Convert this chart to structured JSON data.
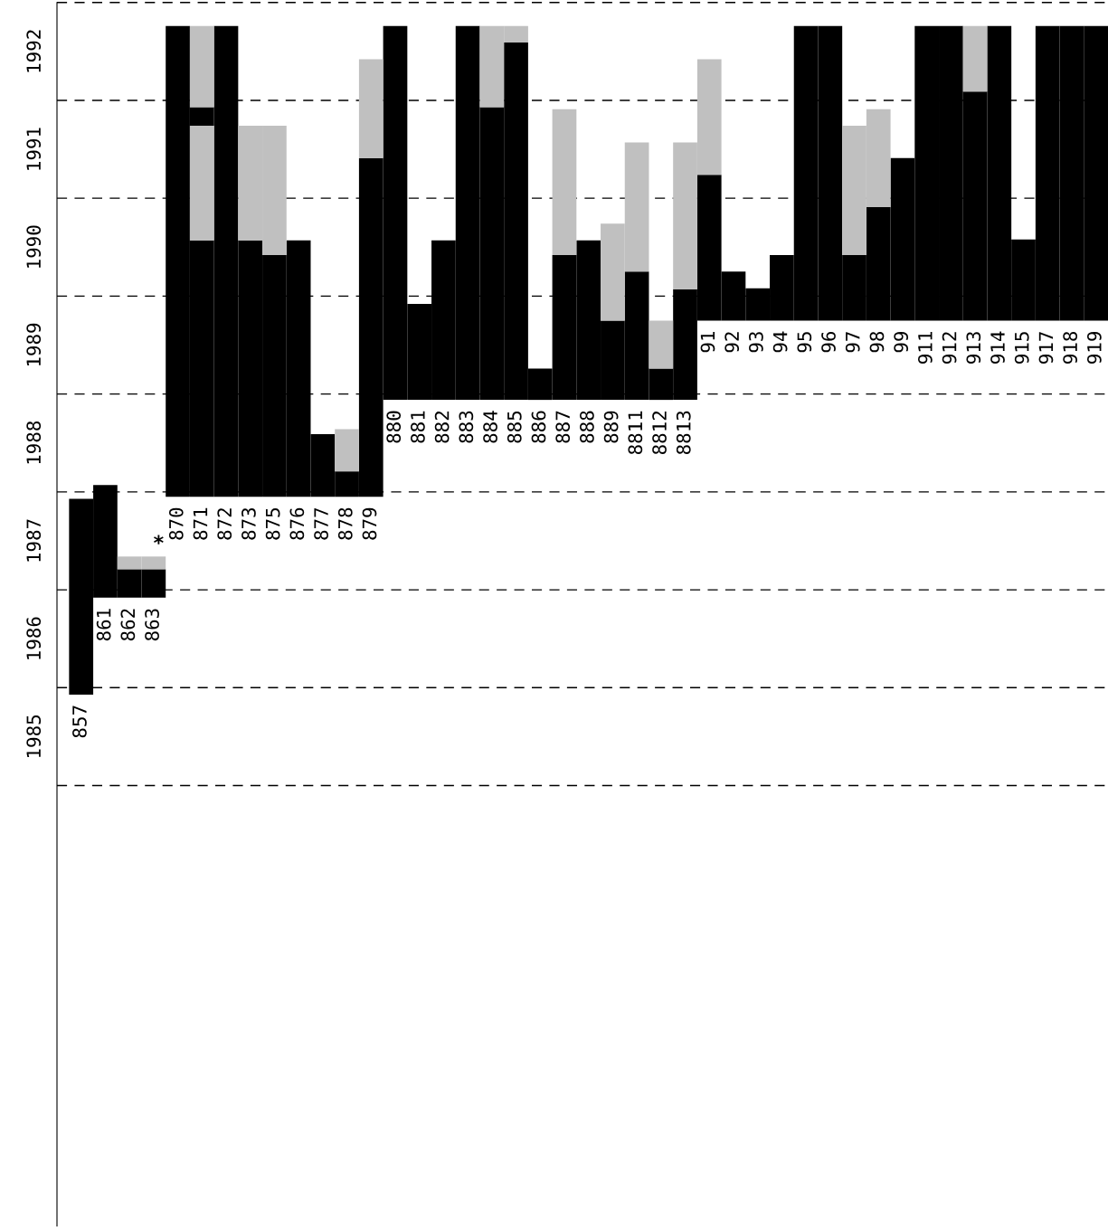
{
  "chart_data": {
    "type": "bar",
    "categories": [
      "857",
      "861",
      "862",
      "863",
      "870",
      "871",
      "872",
      "873",
      "875",
      "876",
      "877",
      "878",
      "879",
      "880",
      "881",
      "882",
      "883",
      "884",
      "885",
      "886",
      "887",
      "888",
      "889",
      "8811",
      "8812",
      "8813",
      "91",
      "92",
      "93",
      "94",
      "95",
      "96",
      "97",
      "98",
      "99",
      "911",
      "912",
      "913",
      "914",
      "915",
      "917",
      "918",
      "919"
    ],
    "series": [
      {
        "color": "#000000",
        "base": [
          1985.93,
          1986.92,
          1986.92,
          1986.92,
          1987.95,
          1987.95,
          1987.95,
          1987.95,
          1987.95,
          1987.95,
          1987.95,
          1987.95,
          1987.95,
          1988.94,
          1988.94,
          1988.94,
          1988.94,
          1988.94,
          1988.94,
          1988.94,
          1988.94,
          1988.94,
          1988.94,
          1988.94,
          1988.94,
          1988.94,
          1989.75,
          1989.75,
          1989.75,
          1989.75,
          1989.75,
          1989.75,
          1989.75,
          1989.75,
          1989.75,
          1989.75,
          1989.75,
          1989.75,
          1989.75,
          1989.75,
          1989.75,
          1989.75,
          1989.75
        ],
        "values": [
          2.0,
          1.15,
          0.29,
          0.29,
          4.81,
          2.62,
          4.81,
          2.62,
          2.47,
          2.62,
          0.64,
          0.26,
          3.46,
          3.82,
          0.98,
          1.63,
          3.82,
          2.99,
          3.65,
          0.32,
          1.48,
          1.63,
          0.81,
          1.31,
          0.32,
          1.13,
          1.49,
          0.5,
          0.33,
          0.67,
          3.01,
          3.01,
          0.67,
          1.16,
          1.66,
          3.01,
          3.01,
          2.34,
          3.01,
          0.83,
          3.01,
          3.01,
          3.01
        ]
      },
      {
        "color": "#c0c0c0",
        "base": [
          null,
          null,
          1987.21,
          1987.21,
          null,
          1990.57,
          null,
          1990.57,
          1990.42,
          null,
          null,
          1988.21,
          1991.41,
          null,
          null,
          null,
          null,
          1991.93,
          1992.59,
          null,
          1990.42,
          null,
          1989.75,
          1990.25,
          1989.26,
          1990.07,
          1991.24,
          null,
          null,
          null,
          null,
          null,
          1990.42,
          1990.91,
          null,
          null,
          null,
          1992.09,
          null,
          null,
          null,
          null,
          null
        ],
        "values": [
          null,
          null,
          0.13,
          0.13,
          null,
          1.17,
          null,
          1.17,
          1.32,
          null,
          null,
          0.43,
          1.01,
          null,
          null,
          null,
          null,
          0.83,
          0.17,
          null,
          1.49,
          null,
          0.99,
          1.32,
          0.49,
          1.5,
          1.18,
          null,
          null,
          null,
          null,
          null,
          1.32,
          1.0,
          null,
          null,
          null,
          0.67,
          null,
          null,
          null,
          null,
          null
        ]
      },
      {
        "color": "#000000",
        "base": [
          null,
          null,
          null,
          null,
          null,
          1991.74,
          null,
          null,
          null,
          null,
          null,
          null,
          null,
          null,
          null,
          null,
          null,
          null,
          null,
          null,
          null,
          null,
          null,
          null,
          null,
          null,
          null,
          null,
          null,
          null,
          null,
          null,
          null,
          null,
          null,
          null,
          null,
          null,
          null,
          null,
          null,
          null,
          null
        ],
        "values": [
          null,
          null,
          null,
          null,
          null,
          0.19,
          null,
          null,
          null,
          null,
          null,
          null,
          null,
          null,
          null,
          null,
          null,
          null,
          null,
          null,
          null,
          null,
          null,
          null,
          null,
          null,
          null,
          null,
          null,
          null,
          null,
          null,
          null,
          null,
          null,
          null,
          null,
          null,
          null,
          null,
          null,
          null,
          null
        ]
      },
      {
        "color": "#c0c0c0",
        "base": [
          null,
          null,
          null,
          null,
          null,
          1991.93,
          null,
          null,
          null,
          null,
          null,
          null,
          null,
          null,
          null,
          null,
          null,
          null,
          null,
          null,
          null,
          null,
          null,
          null,
          null,
          null,
          null,
          null,
          null,
          null,
          null,
          null,
          null,
          null,
          null,
          null,
          null,
          null,
          null,
          null,
          null,
          null,
          null
        ],
        "values": [
          null,
          null,
          null,
          null,
          null,
          0.83,
          null,
          null,
          null,
          null,
          null,
          null,
          null,
          null,
          null,
          null,
          null,
          null,
          null,
          null,
          null,
          null,
          null,
          null,
          null,
          null,
          null,
          null,
          null,
          null,
          null,
          null,
          null,
          null,
          null,
          null,
          null,
          null,
          null,
          null,
          null,
          null,
          null
        ]
      }
    ],
    "ylim": [
      1980.5,
      1993
    ],
    "yticks": [
      {
        "value": 1985.5,
        "label": "1985"
      },
      {
        "value": 1986.5,
        "label": "1986"
      },
      {
        "value": 1987.5,
        "label": "1987"
      },
      {
        "value": 1988.5,
        "label": "1988"
      },
      {
        "value": 1989.5,
        "label": "1989"
      },
      {
        "value": 1990.5,
        "label": "1990"
      },
      {
        "value": 1991.5,
        "label": "1991"
      },
      {
        "value": 1992.5,
        "label": "1992"
      }
    ],
    "ref_lines": [
      {
        "axis": "y",
        "value": 1985,
        "line_style": "dashed",
        "color": "#000000"
      },
      {
        "axis": "y",
        "value": 1986,
        "line_style": "dashed",
        "color": "#000000"
      },
      {
        "axis": "y",
        "value": 1987,
        "line_style": "dashed",
        "color": "#000000"
      },
      {
        "axis": "y",
        "value": 1988,
        "line_style": "dashed",
        "color": "#000000"
      },
      {
        "axis": "y",
        "value": 1989,
        "line_style": "dashed",
        "color": "#000000"
      },
      {
        "axis": "y",
        "value": 1990,
        "line_style": "dashed",
        "color": "#000000"
      },
      {
        "axis": "y",
        "value": 1991,
        "line_style": "dashed",
        "color": "#000000"
      },
      {
        "axis": "y",
        "value": 1992,
        "line_style": "dashed",
        "color": "#000000"
      },
      {
        "axis": "y",
        "value": 1993,
        "line_style": "dashed",
        "color": "#000000"
      }
    ],
    "annotations": [
      {
        "text": "*",
        "x": "863",
        "y": 1987.34
      }
    ],
    "grid": false,
    "legend": false
  }
}
